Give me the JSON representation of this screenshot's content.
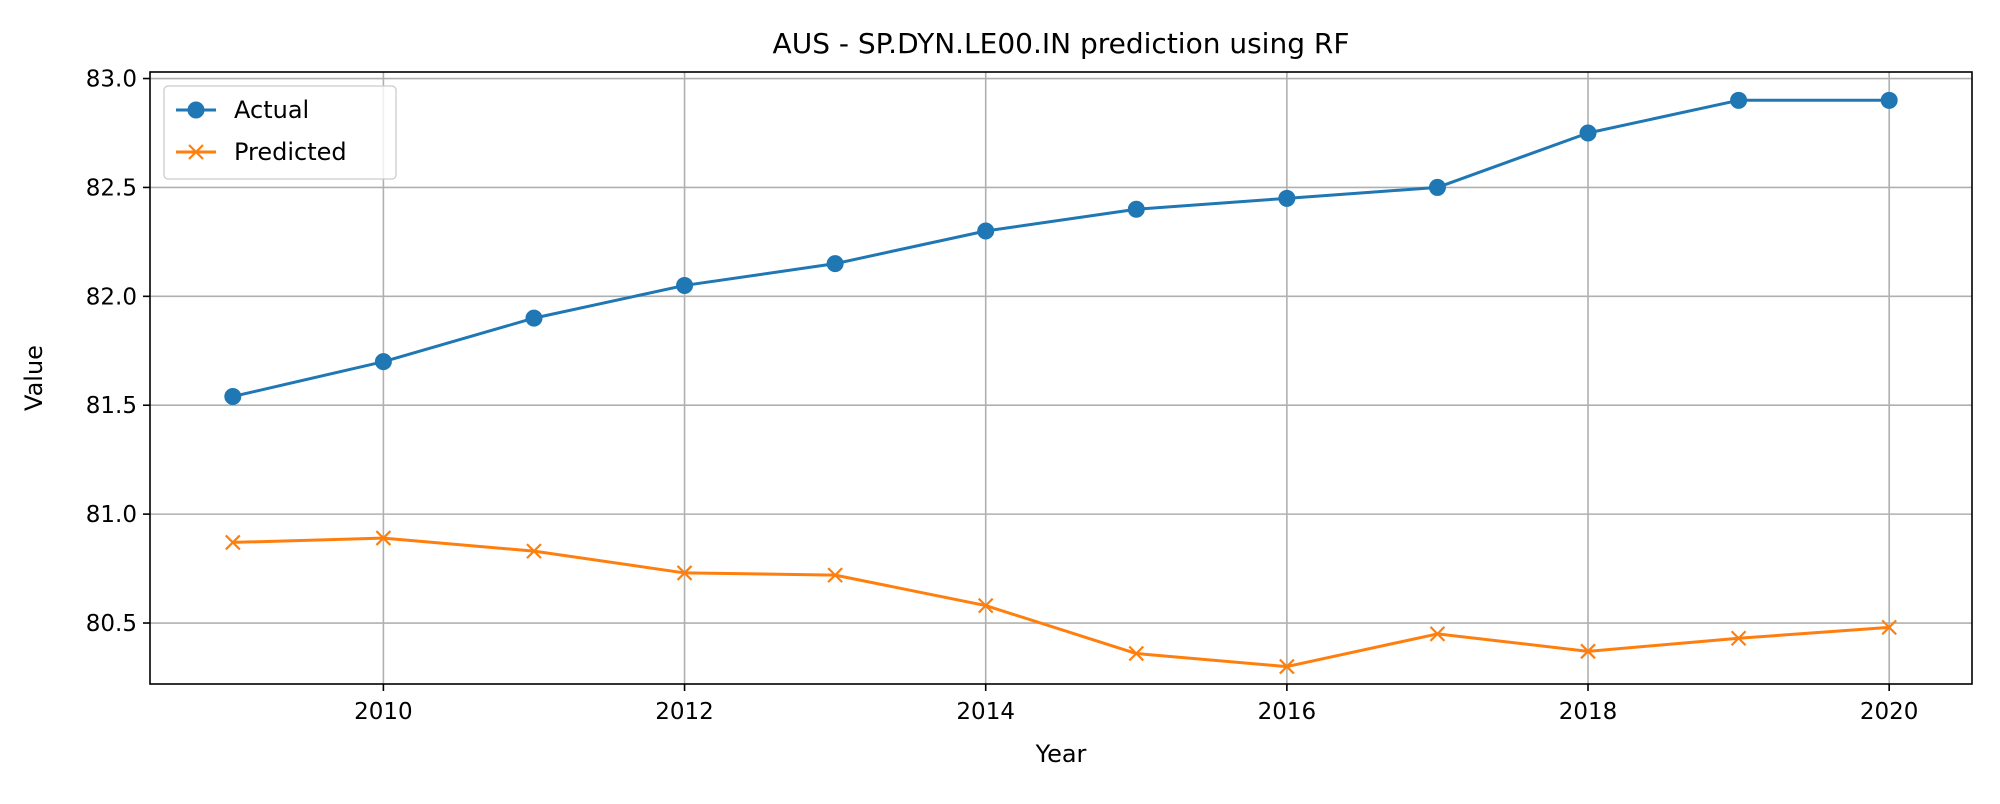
{
  "chart_data": {
    "type": "line",
    "title": "AUS - SP.DYN.LE00.IN prediction using RF",
    "xlabel": "Year",
    "ylabel": "Value",
    "x": [
      2009,
      2010,
      2011,
      2012,
      2013,
      2014,
      2015,
      2016,
      2017,
      2018,
      2019,
      2020
    ],
    "xlim": [
      2008.45,
      2020.55
    ],
    "ylim": [
      80.22,
      83.03
    ],
    "xticks": [
      2010,
      2012,
      2014,
      2016,
      2018,
      2020
    ],
    "yticks": [
      80.5,
      81.0,
      81.5,
      82.0,
      82.5,
      83.0
    ],
    "ytick_labels": [
      "80.5",
      "81.0",
      "81.5",
      "82.0",
      "82.5",
      "83.0"
    ],
    "grid": true,
    "legend_position": "upper-left",
    "series": [
      {
        "name": "Actual",
        "color": "#1f77b4",
        "marker": "circle",
        "values": [
          81.54,
          81.7,
          81.9,
          82.05,
          82.15,
          82.3,
          82.4,
          82.45,
          82.5,
          82.75,
          82.9,
          82.9
        ]
      },
      {
        "name": "Predicted",
        "color": "#ff7f0e",
        "marker": "x",
        "values": [
          80.87,
          80.89,
          80.83,
          80.73,
          80.72,
          80.58,
          80.36,
          80.3,
          80.45,
          80.37,
          80.43,
          80.48
        ]
      }
    ]
  }
}
